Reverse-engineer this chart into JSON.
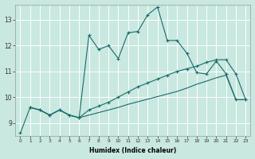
{
  "xlabel": "Humidex (Indice chaleur)",
  "background_color": "#c8e8e0",
  "grid_color": "#ffffff",
  "line_color": "#1a6b6b",
  "x_data": [
    0,
    1,
    2,
    3,
    4,
    5,
    6,
    7,
    8,
    9,
    10,
    11,
    12,
    13,
    14,
    15,
    16,
    17,
    18,
    19,
    20,
    21,
    22,
    23
  ],
  "line1_y": [
    8.6,
    9.6,
    9.5,
    9.3,
    9.5,
    9.3,
    9.2,
    12.4,
    11.85,
    12.0,
    11.5,
    12.5,
    12.55,
    13.2,
    13.5,
    12.2,
    12.2,
    11.7,
    10.95,
    10.9,
    11.4,
    10.9,
    9.9,
    9.9
  ],
  "line2_x": [
    1,
    2,
    3,
    4,
    5,
    6,
    7,
    8,
    9,
    10,
    11,
    12,
    13,
    14,
    15,
    16,
    17,
    18,
    19,
    20,
    21,
    22,
    23
  ],
  "line2_y": [
    9.6,
    9.5,
    9.3,
    9.5,
    9.3,
    9.2,
    9.5,
    9.65,
    9.8,
    10.0,
    10.2,
    10.4,
    10.55,
    10.7,
    10.85,
    11.0,
    11.1,
    11.2,
    11.35,
    11.45,
    11.45,
    10.9,
    9.9
  ],
  "line3_x": [
    1,
    2,
    3,
    4,
    5,
    6,
    7,
    8,
    9,
    10,
    11,
    12,
    13,
    14,
    15,
    16,
    17,
    18,
    19,
    20,
    21,
    22,
    23
  ],
  "line3_y": [
    9.6,
    9.5,
    9.3,
    9.5,
    9.3,
    9.2,
    9.3,
    9.4,
    9.5,
    9.6,
    9.72,
    9.82,
    9.92,
    10.02,
    10.12,
    10.22,
    10.35,
    10.5,
    10.62,
    10.75,
    10.85,
    9.9,
    9.9
  ],
  "ylim": [
    8.5,
    13.6
  ],
  "xlim": [
    -0.5,
    23.5
  ],
  "yticks": [
    9,
    10,
    11,
    12,
    13
  ],
  "xticks": [
    0,
    1,
    2,
    3,
    4,
    5,
    6,
    7,
    8,
    9,
    10,
    11,
    12,
    13,
    14,
    15,
    16,
    17,
    18,
    19,
    20,
    21,
    22,
    23
  ]
}
